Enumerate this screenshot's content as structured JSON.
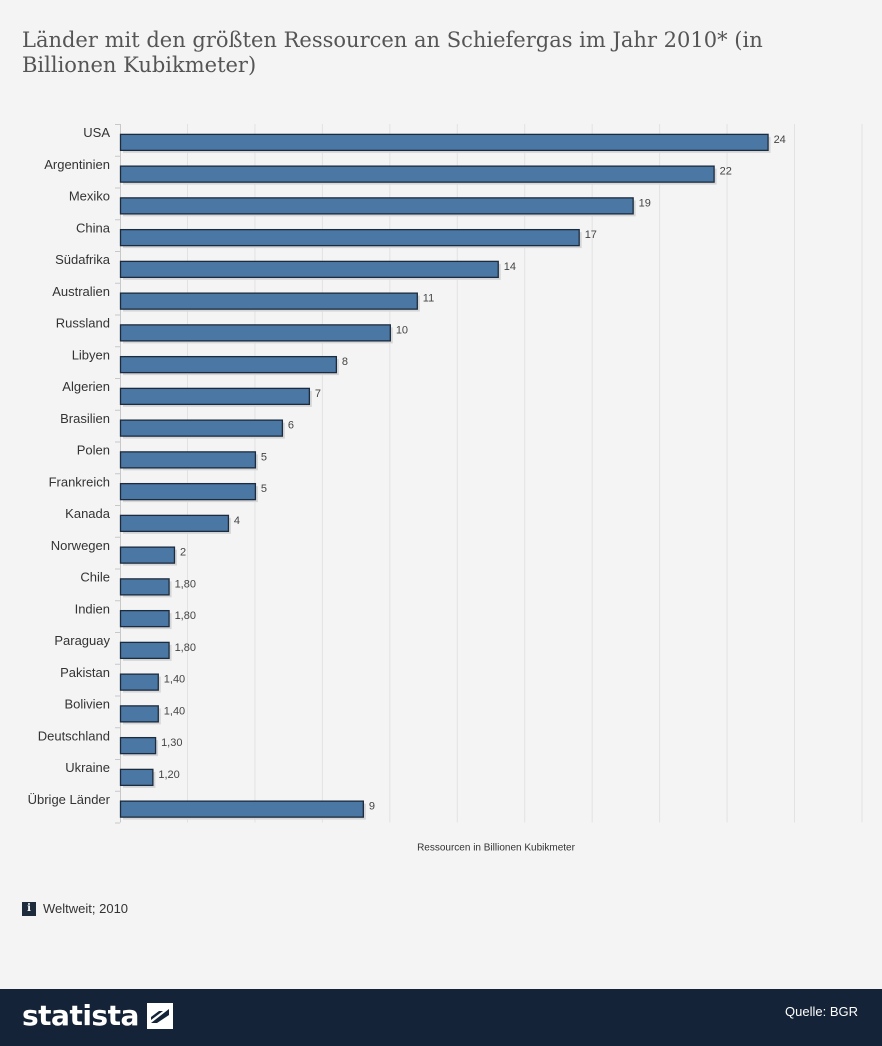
{
  "title": "Länder mit den größten Ressourcen an Schiefergas im Jahr 2010* (in Billionen Kubikmeter)",
  "meta_label": "Weltweit; 2010",
  "brand": "statista",
  "source": "Quelle: BGR",
  "colors": {
    "bar": "#4a77a4",
    "bar_stroke": "#1c2b3d",
    "footer": "#142337"
  },
  "chart_data": {
    "type": "bar",
    "orientation": "horizontal",
    "categories": [
      "USA",
      "Argentinien",
      "Mexiko",
      "China",
      "Südafrika",
      "Australien",
      "Russland",
      "Libyen",
      "Algerien",
      "Brasilien",
      "Polen",
      "Frankreich",
      "Kanada",
      "Norwegen",
      "Chile",
      "Indien",
      "Paraguay",
      "Pakistan",
      "Bolivien",
      "Deutschland",
      "Ukraine",
      "Übrige Länder"
    ],
    "values": [
      24,
      22,
      19,
      17,
      14,
      11,
      10,
      8,
      7,
      6,
      5,
      5,
      4,
      2,
      1.8,
      1.8,
      1.8,
      1.4,
      1.4,
      1.3,
      1.2,
      9
    ],
    "value_labels": [
      "24",
      "22",
      "19",
      "17",
      "14",
      "11",
      "10",
      "8",
      "7",
      "6",
      "5",
      "5",
      "4",
      "2",
      "1,80",
      "1,80",
      "1,80",
      "1,40",
      "1,40",
      "1,30",
      "1,20",
      "9"
    ],
    "xlabel": "Ressourcen in Billionen Kubikmeter",
    "xlim": [
      0,
      27.5
    ],
    "grid": true
  }
}
